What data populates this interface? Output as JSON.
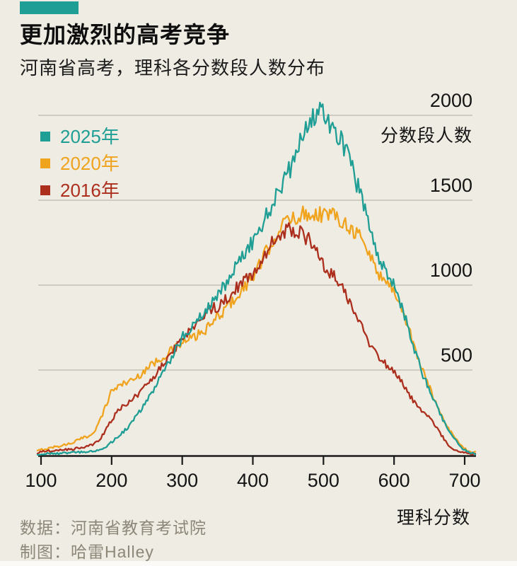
{
  "page": {
    "background": "#efece3",
    "tag_color": "#1f9e95"
  },
  "header": {
    "title": "更加激烈的高考竞争",
    "subtitle": "河南省高考，理科各分数段人数分布"
  },
  "footer": {
    "source": "数据：河南省教育考试院",
    "credit": "制图：哈雷Halley"
  },
  "chart_data": {
    "type": "line",
    "title": "更加激烈的高考竞争",
    "subtitle": "河南省高考，理科各分数段人数分布",
    "xlabel": "理科分数",
    "ylabel": "分数段人数",
    "xlim": [
      95,
      718
    ],
    "ylim": [
      0,
      2080
    ],
    "x_ticks": [
      100,
      200,
      300,
      400,
      500,
      600,
      700
    ],
    "y_ticks": [
      500,
      1000,
      1500,
      2000
    ],
    "grid": "horizontal",
    "legend_position": "top-left",
    "line_style": "noisy",
    "colors": {
      "grid": "#c4c0b5",
      "axis": "#1a1a1a",
      "text": "#141414"
    },
    "series": [
      {
        "name": "2020年",
        "color": "#f0a31c",
        "points": [
          [
            95,
            22
          ],
          [
            100,
            30
          ],
          [
            110,
            38
          ],
          [
            120,
            48
          ],
          [
            130,
            56
          ],
          [
            140,
            66
          ],
          [
            150,
            83
          ],
          [
            160,
            100
          ],
          [
            170,
            115
          ],
          [
            180,
            170
          ],
          [
            190,
            270
          ],
          [
            200,
            380
          ],
          [
            210,
            405
          ],
          [
            220,
            430
          ],
          [
            230,
            440
          ],
          [
            240,
            470
          ],
          [
            250,
            513
          ],
          [
            260,
            540
          ],
          [
            270,
            570
          ],
          [
            280,
            600
          ],
          [
            290,
            630
          ],
          [
            300,
            658
          ],
          [
            310,
            680
          ],
          [
            320,
            700
          ],
          [
            330,
            725
          ],
          [
            340,
            760
          ],
          [
            350,
            817
          ],
          [
            360,
            855
          ],
          [
            370,
            900
          ],
          [
            380,
            950
          ],
          [
            390,
            1000
          ],
          [
            400,
            1050
          ],
          [
            410,
            1120
          ],
          [
            420,
            1200
          ],
          [
            430,
            1280
          ],
          [
            440,
            1340
          ],
          [
            450,
            1380
          ],
          [
            460,
            1400
          ],
          [
            470,
            1415
          ],
          [
            480,
            1425
          ],
          [
            490,
            1420
          ],
          [
            500,
            1420
          ],
          [
            510,
            1415
          ],
          [
            520,
            1405
          ],
          [
            530,
            1375
          ],
          [
            540,
            1330
          ],
          [
            550,
            1300
          ],
          [
            560,
            1220
          ],
          [
            570,
            1140
          ],
          [
            580,
            1060
          ],
          [
            590,
            1010
          ],
          [
            600,
            975
          ],
          [
            610,
            860
          ],
          [
            620,
            760
          ],
          [
            630,
            620
          ],
          [
            640,
            500
          ],
          [
            650,
            400
          ],
          [
            660,
            300
          ],
          [
            670,
            210
          ],
          [
            680,
            140
          ],
          [
            690,
            80
          ],
          [
            700,
            35
          ],
          [
            710,
            18
          ],
          [
            715,
            15
          ]
        ]
      },
      {
        "name": "2016年",
        "color": "#ac2f1e",
        "points": [
          [
            95,
            12
          ],
          [
            100,
            20
          ],
          [
            110,
            22
          ],
          [
            120,
            25
          ],
          [
            130,
            28
          ],
          [
            140,
            33
          ],
          [
            150,
            36
          ],
          [
            160,
            46
          ],
          [
            170,
            58
          ],
          [
            180,
            75
          ],
          [
            190,
            130
          ],
          [
            200,
            210
          ],
          [
            210,
            260
          ],
          [
            220,
            300
          ],
          [
            230,
            330
          ],
          [
            240,
            370
          ],
          [
            250,
            408
          ],
          [
            260,
            460
          ],
          [
            270,
            520
          ],
          [
            280,
            575
          ],
          [
            290,
            630
          ],
          [
            300,
            687
          ],
          [
            310,
            730
          ],
          [
            320,
            775
          ],
          [
            330,
            820
          ],
          [
            340,
            855
          ],
          [
            350,
            875
          ],
          [
            360,
            905
          ],
          [
            370,
            950
          ],
          [
            380,
            1000
          ],
          [
            390,
            1030
          ],
          [
            400,
            1067
          ],
          [
            410,
            1130
          ],
          [
            420,
            1200
          ],
          [
            430,
            1260
          ],
          [
            440,
            1300
          ],
          [
            450,
            1330
          ],
          [
            460,
            1320
          ],
          [
            470,
            1300
          ],
          [
            480,
            1260
          ],
          [
            490,
            1190
          ],
          [
            500,
            1120
          ],
          [
            510,
            1070
          ],
          [
            520,
            1030
          ],
          [
            530,
            950
          ],
          [
            540,
            870
          ],
          [
            550,
            780
          ],
          [
            560,
            700
          ],
          [
            570,
            630
          ],
          [
            580,
            570
          ],
          [
            590,
            530
          ],
          [
            600,
            500
          ],
          [
            610,
            430
          ],
          [
            620,
            360
          ],
          [
            630,
            300
          ],
          [
            640,
            250
          ],
          [
            650,
            225
          ],
          [
            660,
            160
          ],
          [
            670,
            100
          ],
          [
            680,
            46
          ],
          [
            690,
            25
          ],
          [
            700,
            12
          ],
          [
            710,
            5
          ],
          [
            715,
            3
          ]
        ]
      },
      {
        "name": "2025年",
        "color": "#1f9e95",
        "points": [
          [
            95,
            3
          ],
          [
            100,
            5
          ],
          [
            110,
            7
          ],
          [
            120,
            8
          ],
          [
            130,
            10
          ],
          [
            140,
            12
          ],
          [
            150,
            16
          ],
          [
            160,
            18
          ],
          [
            170,
            21
          ],
          [
            180,
            25
          ],
          [
            190,
            45
          ],
          [
            200,
            75
          ],
          [
            210,
            110
          ],
          [
            220,
            150
          ],
          [
            230,
            200
          ],
          [
            240,
            260
          ],
          [
            250,
            318
          ],
          [
            260,
            390
          ],
          [
            270,
            460
          ],
          [
            280,
            540
          ],
          [
            290,
            615
          ],
          [
            300,
            693
          ],
          [
            310,
            740
          ],
          [
            320,
            790
          ],
          [
            330,
            840
          ],
          [
            340,
            885
          ],
          [
            350,
            930
          ],
          [
            360,
            1000
          ],
          [
            370,
            1080
          ],
          [
            380,
            1140
          ],
          [
            390,
            1200
          ],
          [
            400,
            1250
          ],
          [
            410,
            1330
          ],
          [
            420,
            1420
          ],
          [
            430,
            1500
          ],
          [
            440,
            1580
          ],
          [
            450,
            1660
          ],
          [
            460,
            1760
          ],
          [
            470,
            1860
          ],
          [
            480,
            1950
          ],
          [
            490,
            2010
          ],
          [
            495,
            2040
          ],
          [
            500,
            1995
          ],
          [
            510,
            1945
          ],
          [
            520,
            1885
          ],
          [
            530,
            1800
          ],
          [
            540,
            1690
          ],
          [
            550,
            1560
          ],
          [
            560,
            1420
          ],
          [
            570,
            1280
          ],
          [
            580,
            1150
          ],
          [
            590,
            1060
          ],
          [
            600,
            1020
          ],
          [
            610,
            880
          ],
          [
            620,
            750
          ],
          [
            630,
            610
          ],
          [
            640,
            480
          ],
          [
            650,
            390
          ],
          [
            660,
            290
          ],
          [
            670,
            200
          ],
          [
            680,
            135
          ],
          [
            690,
            70
          ],
          [
            700,
            28
          ],
          [
            710,
            10
          ],
          [
            715,
            5
          ]
        ]
      }
    ],
    "legend_order": [
      "2025年",
      "2020年",
      "2016年"
    ]
  }
}
